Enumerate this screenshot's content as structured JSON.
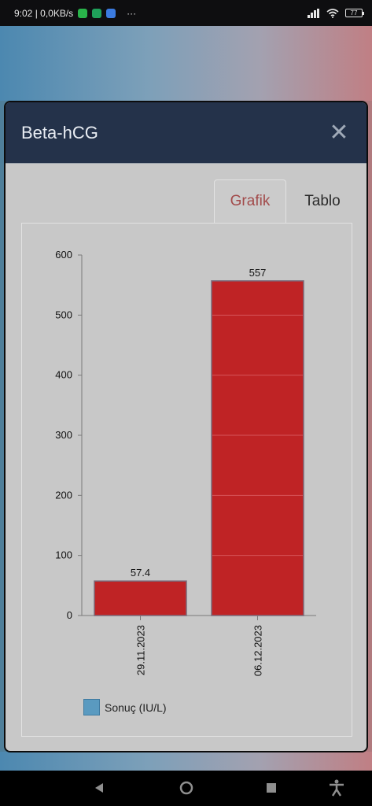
{
  "status_bar": {
    "time_speed": "9:02 | 0,0KB/s",
    "more": "···",
    "battery": "77",
    "app_icons": [
      "whatsapp-icon",
      "whatsapp-business-icon",
      "messages-icon"
    ],
    "app_icon_colors": [
      "#29b34a",
      "#1fa05a",
      "#3b7be0"
    ]
  },
  "modal": {
    "title": "Beta-hCG",
    "close_label": "✕"
  },
  "tabs": [
    {
      "label": "Grafik",
      "active": true
    },
    {
      "label": "Tablo",
      "active": false
    }
  ],
  "chart_data": {
    "type": "bar",
    "categories": [
      "29.11.2023",
      "06.12.2023"
    ],
    "series": [
      {
        "name": "Sonuç (IU/L)",
        "values": [
          57.4,
          557
        ],
        "color": "#bf2325"
      }
    ],
    "data_labels": [
      "57.4",
      "557"
    ],
    "y_ticks": [
      0,
      100,
      200,
      300,
      400,
      500,
      600
    ],
    "ylim": [
      0,
      600
    ],
    "legend_position": "bottom-left"
  },
  "nav_bar": {
    "icons": [
      "back-icon",
      "home-icon",
      "recents-icon",
      "accessibility-icon"
    ]
  }
}
